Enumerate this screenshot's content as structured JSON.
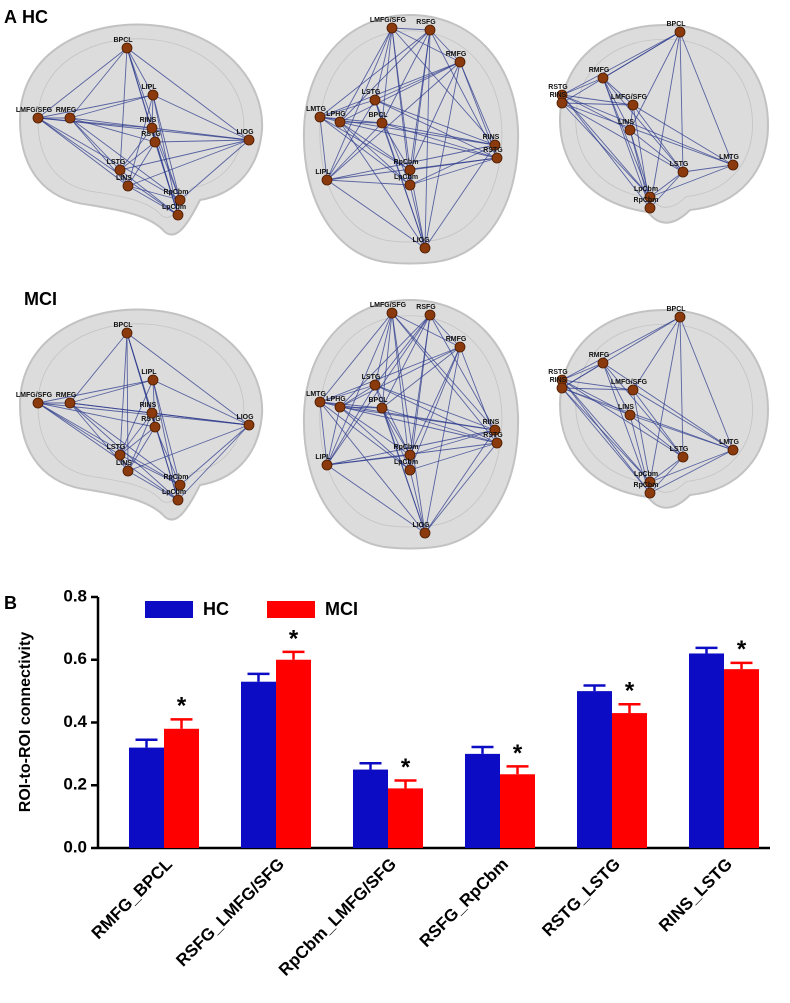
{
  "panel_a": {
    "label": "A",
    "groups": [
      "HC",
      "MCI"
    ],
    "views": [
      {
        "nodes": [
          "BPCL",
          "LIPL",
          "RMFG",
          "RSTG",
          "RINS",
          "LMFG/SFG",
          "LIOG",
          "LSTG",
          "LINS",
          "RpCbm",
          "LpCbm"
        ]
      },
      {
        "nodes": [
          "LMFG/SFG",
          "RSFG",
          "RMFG",
          "LSTG",
          "LMTG",
          "LPHG",
          "BPCL",
          "RINS",
          "RSTG",
          "RpCbm",
          "LpCbm",
          "LIPL",
          "LIOG"
        ]
      },
      {
        "nodes": [
          "BPCL",
          "RMFG",
          "RSTG",
          "RINS",
          "LMFG/SFG",
          "LINS",
          "LSTG",
          "LMTG",
          "LpCbm",
          "RpCbm"
        ]
      }
    ]
  },
  "chart_data": {
    "type": "bar",
    "panel_label": "B",
    "y_label": "ROI-to-ROI connectivity",
    "categories": [
      "RMFG_BPCL",
      "RSFG_LMFG/SFG",
      "RpCbm_LMFG/SFG",
      "RSFG_RpCbm",
      "RSTG_LSTG",
      "RINS_LSTG"
    ],
    "series": [
      {
        "name": "HC",
        "color": "#0c0cc4",
        "values": [
          0.32,
          0.53,
          0.25,
          0.3,
          0.5,
          0.62
        ],
        "errors": [
          0.025,
          0.025,
          0.02,
          0.022,
          0.018,
          0.018
        ]
      },
      {
        "name": "MCI",
        "color": "#ff0000",
        "values": [
          0.38,
          0.6,
          0.19,
          0.235,
          0.43,
          0.57
        ],
        "errors": [
          0.03,
          0.025,
          0.025,
          0.025,
          0.028,
          0.02
        ]
      }
    ],
    "significance": [
      "*",
      "*",
      "*",
      "*",
      "*",
      "*"
    ],
    "ylim": [
      0,
      0.8
    ],
    "yticks": [
      {
        "value": 0,
        "label": "0.0"
      },
      0.2,
      0.4,
      0.6,
      0.8
    ]
  }
}
